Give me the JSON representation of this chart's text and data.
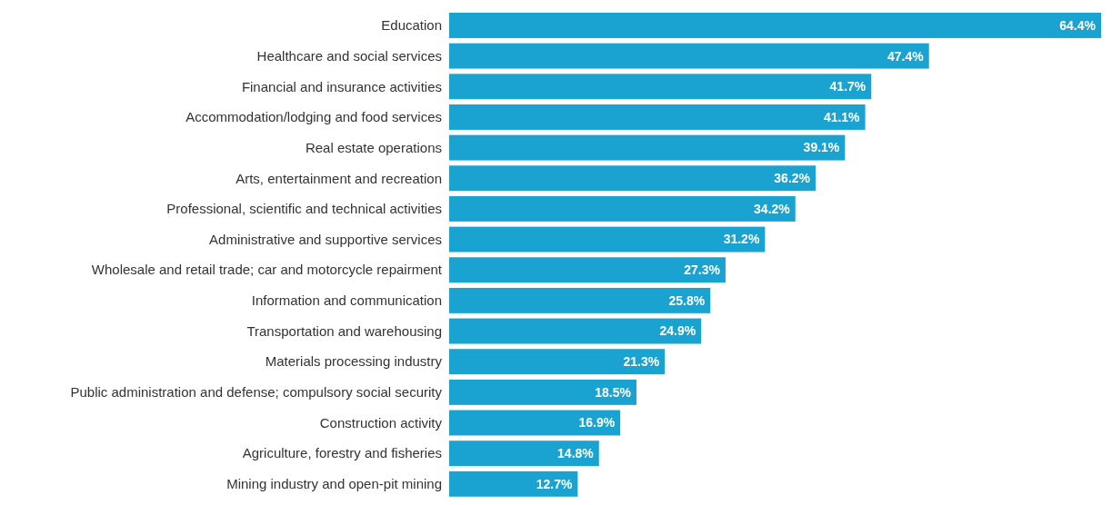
{
  "chart_data": {
    "type": "bar",
    "orientation": "horizontal",
    "color": "#1aa3d1",
    "value_labels": [
      "64.4%",
      "47.4%",
      "41.7%",
      "41.1%",
      "39.1%",
      "36.2%",
      "34.2%",
      "31.2%",
      "27.3%",
      "25.8%",
      "24.9%",
      "21.3%",
      "18.5%",
      "16.9%",
      "14.8%",
      "12.7%"
    ],
    "categories": [
      "Education",
      "Healthcare and social services",
      "Financial and insurance activities",
      "Accommodation/lodging and food services",
      "Real estate operations",
      "Arts, entertainment and recreation",
      "Professional, scientific and technical activities",
      "Administrative and supportive services",
      "Wholesale and retail trade; car and motorcycle repairment",
      "Information and communication",
      "Transportation and warehousing",
      "Materials processing industry",
      "Public administration and defense; compulsory social security",
      "Construction activity",
      "Agriculture, forestry and fisheries",
      "Mining industry and open-pit mining"
    ],
    "values": [
      64.4,
      47.4,
      41.7,
      41.1,
      39.1,
      36.2,
      34.2,
      31.2,
      27.3,
      25.8,
      24.9,
      21.3,
      18.5,
      16.9,
      14.8,
      12.7
    ]
  }
}
